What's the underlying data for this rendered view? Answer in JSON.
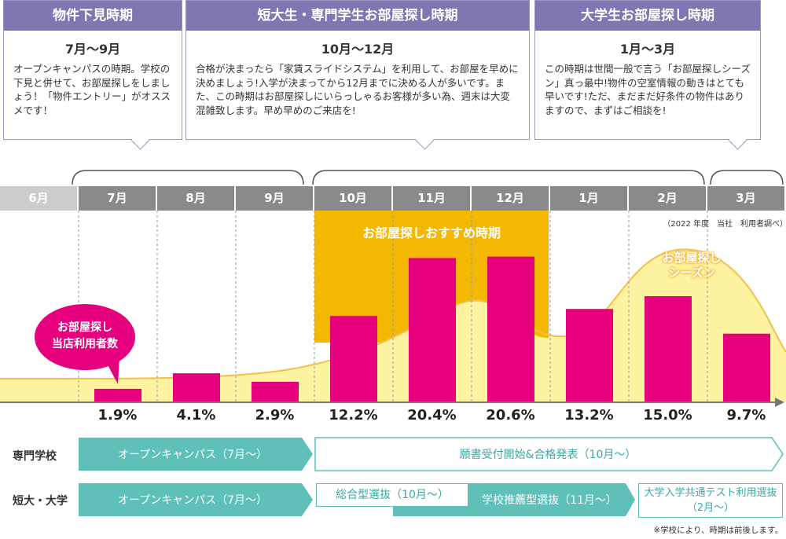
{
  "periods": [
    {
      "title": "物件下見時期",
      "range": "7月～9月",
      "text": "オープンキャンパスの時期。学校の下見と併せて、お部屋探しをしましょう！「物件エントリー」がオススメです！"
    },
    {
      "title": "短大生・専門学生お部屋探し時期",
      "range": "10月～12月",
      "text": "合格が決まったら「家賃スライドシステム」を利用して、お部屋を早めに決めましょう!入学が決まってから12月までに決める人が多いです。また、この時期はお部屋探しにいらっしゃるお客様が多い為、週末は大変混雑致します。早め早めのご来店を!"
    },
    {
      "title": "大学生お部屋探し時期",
      "range": "1月～3月",
      "text": "この時期は世間一般で言う「お部屋探しシーズン」真っ最中!物件の空室情報の動きはとても早いです!ただ、まだまだ好条件の物件はありますので、まずはご相談を!"
    }
  ],
  "recommend_label": "お部屋探しおすすめ時期",
  "season_label": "お部屋探し\nシーズン",
  "users_label": "お部屋探し\n当店利用者数",
  "source_note": "（2022 年度　当社　利用者調べ）",
  "footnote": "※学校により、時期は前後します。",
  "colors": {
    "bar": "#e6007e",
    "recommend": "#f5b800",
    "season": "#fdf3a0",
    "season_stroke": "#f3c04a",
    "month_bg": "#8a8a8a",
    "month_first": "#cccccc",
    "teal": "#5fbfb9",
    "purple": "#7f77b2"
  },
  "chart_data": {
    "type": "bar",
    "categories": [
      "6月",
      "7月",
      "8月",
      "9月",
      "10月",
      "11月",
      "12月",
      "1月",
      "2月",
      "3月"
    ],
    "values": [
      null,
      1.9,
      4.1,
      2.9,
      12.2,
      20.4,
      20.6,
      13.2,
      15.0,
      9.7
    ],
    "value_labels": [
      "",
      "1.9%",
      "4.1%",
      "2.9%",
      "12.2%",
      "20.4%",
      "20.6%",
      "13.2%",
      "15.0%",
      "9.7%"
    ],
    "unit": "%"
  },
  "schedule": {
    "rows": [
      {
        "label": "専門学校",
        "items": [
          {
            "text": "オープンキャンパス（7月～）",
            "style": "filled"
          },
          {
            "text": "願書受付開始&合格発表（10月～）",
            "style": "outline"
          }
        ]
      },
      {
        "label": "短大・大学",
        "items": [
          {
            "text": "オープンキャンパス（7月～）",
            "style": "filled"
          },
          {
            "text": "総合型選抜（10月～）",
            "style": "outline"
          },
          {
            "text": "学校推薦型選抜（11月～）",
            "style": "filled"
          },
          {
            "text": "大学入学共通テスト利用選抜\n（2月～）",
            "style": "outline"
          }
        ]
      }
    ]
  }
}
